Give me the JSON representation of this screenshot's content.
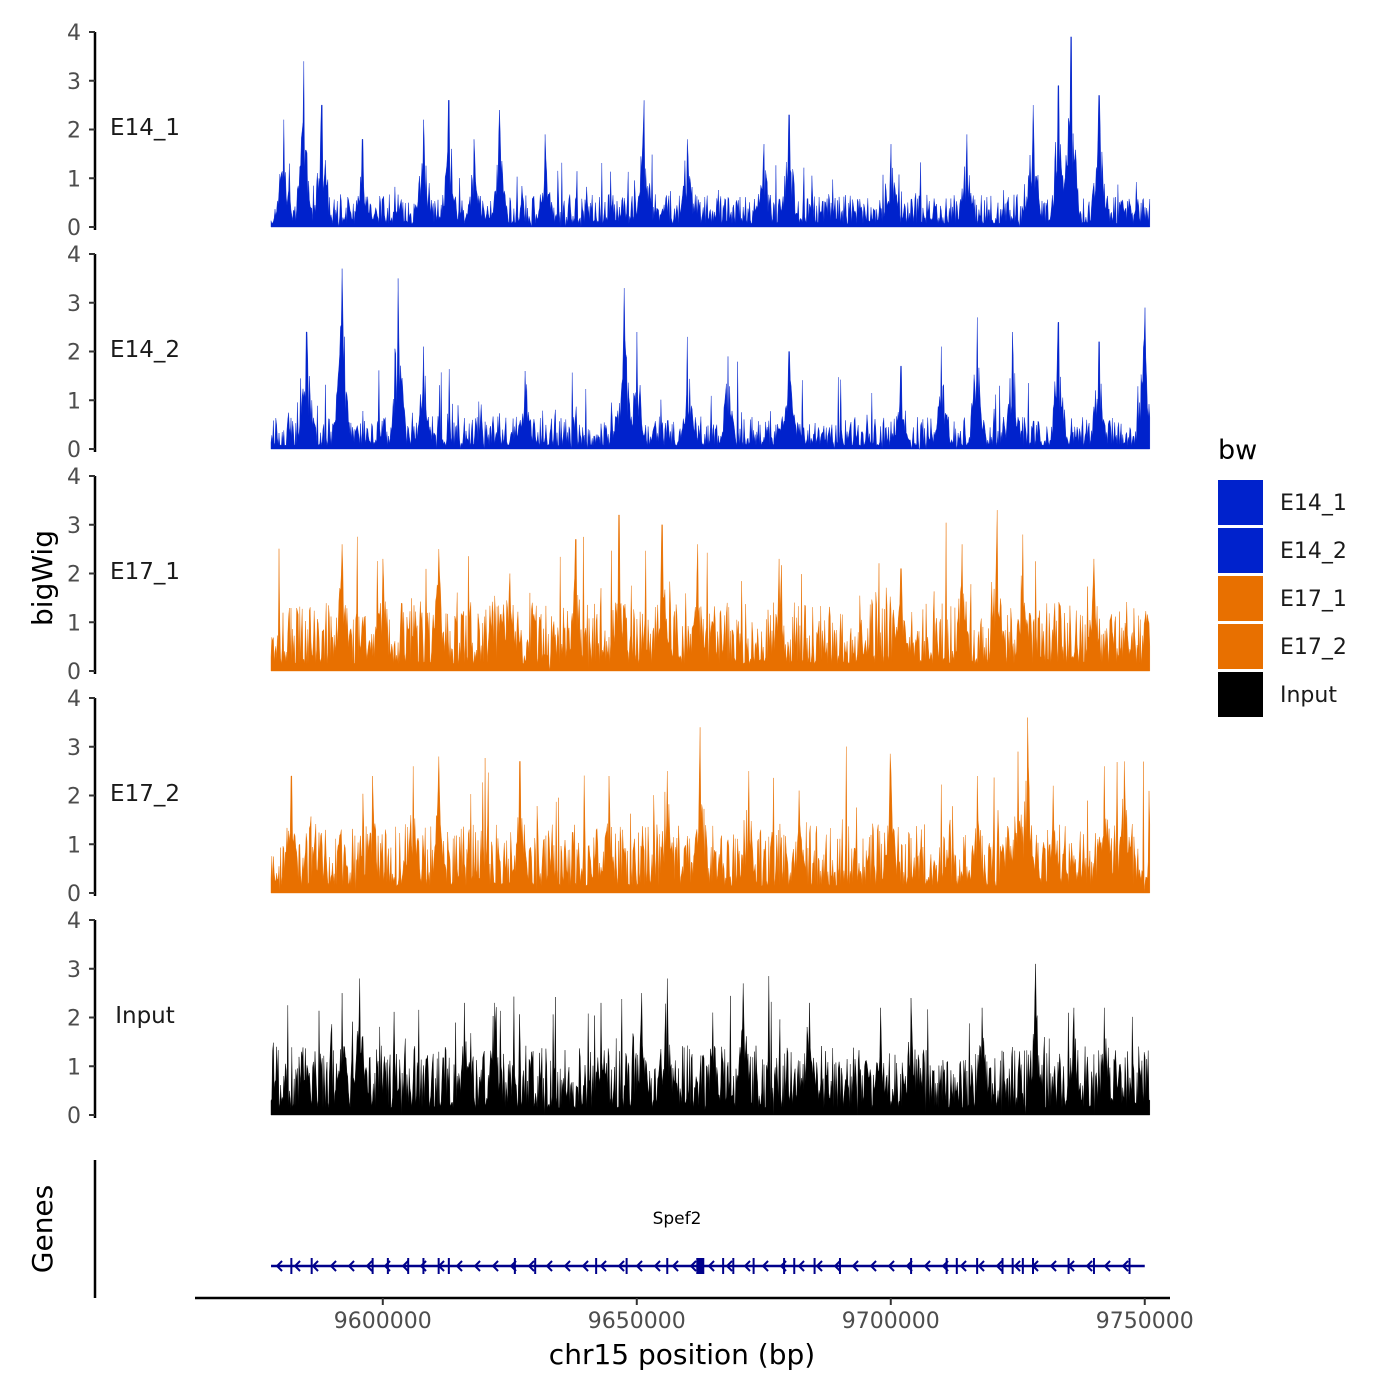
{
  "chart_data": {
    "type": "area",
    "ylabel": "bigWig",
    "xlabel": "chr15 position (bp)",
    "genes_label": "Genes",
    "xlim": [
      9565000,
      9753000
    ],
    "data_range": [
      9578000,
      9751000
    ],
    "x_ticks": [
      9600000,
      9650000,
      9700000,
      9750000
    ],
    "x_tick_labels": [
      "9600000",
      "9650000",
      "9700000",
      "9750000"
    ],
    "ylim": [
      0,
      4
    ],
    "y_ticks": [
      0,
      1,
      2,
      3,
      4
    ],
    "y_tick_labels": [
      "0",
      "1",
      "2",
      "3",
      "4"
    ],
    "tracks": [
      {
        "name": "E14_1",
        "color": "#0022CC",
        "seed": 11,
        "base": 0.45,
        "peaks": [
          [
            9580500,
            2.2
          ],
          [
            9584500,
            3.4
          ],
          [
            9588000,
            2.5
          ],
          [
            9596000,
            1.8
          ],
          [
            9608000,
            2.2
          ],
          [
            9613000,
            2.6
          ],
          [
            9618000,
            1.8
          ],
          [
            9623000,
            2.4
          ],
          [
            9632000,
            1.9
          ],
          [
            9651500,
            2.6
          ],
          [
            9660000,
            1.8
          ],
          [
            9675000,
            1.7
          ],
          [
            9680000,
            2.3
          ],
          [
            9700000,
            1.7
          ],
          [
            9715000,
            1.9
          ],
          [
            9728000,
            2.5
          ],
          [
            9733000,
            2.9
          ],
          [
            9735500,
            3.9
          ],
          [
            9741000,
            2.7
          ]
        ]
      },
      {
        "name": "E14_2",
        "color": "#0022CC",
        "seed": 23,
        "base": 0.45,
        "peaks": [
          [
            9585000,
            2.4
          ],
          [
            9592000,
            3.7
          ],
          [
            9603000,
            3.5
          ],
          [
            9608000,
            2.1
          ],
          [
            9628000,
            1.6
          ],
          [
            9647500,
            3.3
          ],
          [
            9650000,
            2.4
          ],
          [
            9660000,
            2.3
          ],
          [
            9668000,
            1.9
          ],
          [
            9680000,
            2.0
          ],
          [
            9702000,
            1.7
          ],
          [
            9710000,
            2.1
          ],
          [
            9717000,
            2.7
          ],
          [
            9724000,
            2.4
          ],
          [
            9733000,
            2.6
          ],
          [
            9741000,
            2.2
          ],
          [
            9750000,
            2.9
          ]
        ]
      },
      {
        "name": "E17_1",
        "color": "#E87000",
        "seed": 37,
        "base": 0.95,
        "peaks": [
          [
            9592000,
            2.6
          ],
          [
            9600000,
            2.3
          ],
          [
            9611000,
            2.5
          ],
          [
            9625000,
            2.0
          ],
          [
            9638000,
            2.7
          ],
          [
            9646500,
            3.2
          ],
          [
            9655000,
            3.0
          ],
          [
            9662000,
            2.6
          ],
          [
            9678000,
            2.3
          ],
          [
            9702000,
            2.1
          ],
          [
            9714000,
            2.6
          ],
          [
            9721000,
            3.3
          ],
          [
            9726000,
            2.8
          ],
          [
            9740000,
            2.3
          ]
        ]
      },
      {
        "name": "E17_2",
        "color": "#E87000",
        "seed": 53,
        "base": 0.95,
        "peaks": [
          [
            9582000,
            2.4
          ],
          [
            9598000,
            2.4
          ],
          [
            9606000,
            2.6
          ],
          [
            9611000,
            2.8
          ],
          [
            9627000,
            2.7
          ],
          [
            9644500,
            2.4
          ],
          [
            9656000,
            2.5
          ],
          [
            9662500,
            3.4
          ],
          [
            9672000,
            2.5
          ],
          [
            9682000,
            2.1
          ],
          [
            9700000,
            2.5
          ],
          [
            9717000,
            2.4
          ],
          [
            9725000,
            2.9
          ],
          [
            9727000,
            3.6
          ],
          [
            9732000,
            2.2
          ],
          [
            9742000,
            2.6
          ],
          [
            9746000,
            2.7
          ]
        ]
      },
      {
        "name": "Input",
        "color": "#000000",
        "seed": 71,
        "base": 0.95,
        "peaks": [
          [
            9592000,
            2.5
          ],
          [
            9595500,
            2.8
          ],
          [
            9616000,
            2.3
          ],
          [
            9622000,
            2.3
          ],
          [
            9643000,
            2.3
          ],
          [
            9651000,
            2.5
          ],
          [
            9656000,
            2.8
          ],
          [
            9665000,
            2.1
          ],
          [
            9671000,
            2.7
          ],
          [
            9684000,
            2.3
          ],
          [
            9698000,
            2.2
          ],
          [
            9704000,
            2.4
          ],
          [
            9718000,
            2.2
          ],
          [
            9728500,
            3.1
          ],
          [
            9736000,
            2.2
          ],
          [
            9742000,
            2.2
          ]
        ]
      }
    ],
    "legend": {
      "title": "bw",
      "entries": [
        {
          "label": "E14_1",
          "color": "#0022CC"
        },
        {
          "label": "E14_2",
          "color": "#0022CC"
        },
        {
          "label": "E17_1",
          "color": "#E87000"
        },
        {
          "label": "E17_2",
          "color": "#E87000"
        },
        {
          "label": "Input",
          "color": "#000000"
        }
      ]
    },
    "gene": {
      "name": "Spef2",
      "start": 9578000,
      "end": 9750000,
      "strand": "-",
      "color": "#00008B",
      "exons": [
        9582000,
        9586000,
        9598000,
        9601000,
        9605000,
        9608000,
        9611000,
        9613000,
        9626000,
        9630000,
        9642000,
        9648000,
        9656000,
        9662500,
        9667000,
        9669000,
        9673000,
        9679000,
        9681000,
        9685000,
        9690000,
        9704000,
        9711000,
        9713000,
        9717000,
        9722000,
        9724000,
        9726000,
        9728000,
        9735000,
        9740000,
        9747000
      ]
    }
  }
}
